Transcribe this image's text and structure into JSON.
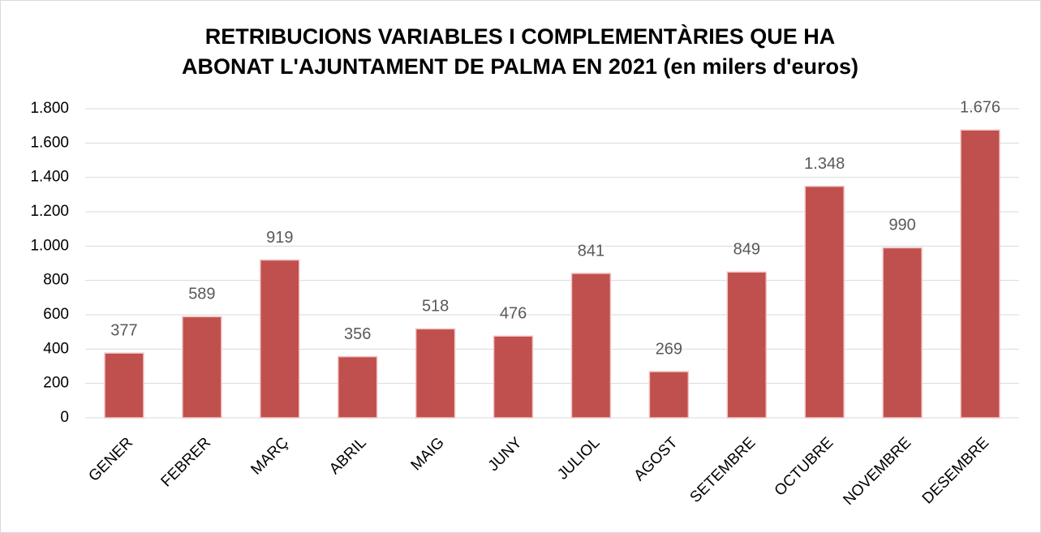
{
  "chart_data": {
    "type": "bar",
    "title": [
      "RETRIBUCIONS VARIABLES I COMPLEMENTÀRIES QUE HA",
      "ABONAT L'AJUNTAMENT DE PALMA EN 2021 (en milers d'euros)"
    ],
    "categories": [
      "GENER",
      "FEBRER",
      "MARÇ",
      "ABRIL",
      "MAIG",
      "JUNY",
      "JULIOL",
      "AGOST",
      "SETEMBRE",
      "OCTUBRE",
      "NOVEMBRE",
      "DESEMBRE"
    ],
    "values": [
      377,
      589,
      919,
      356,
      518,
      476,
      841,
      269,
      849,
      1348,
      990,
      1676
    ],
    "value_labels": [
      "377",
      "589",
      "919",
      "356",
      "518",
      "476",
      "841",
      "269",
      "849",
      "1.348",
      "990",
      "1.676"
    ],
    "color": "#c0504d",
    "ylim": [
      0,
      1800
    ],
    "yticks": [
      0,
      200,
      400,
      600,
      800,
      {
        "value": 1000,
        "label": "1.000"
      },
      {
        "value": 1200,
        "label": "1.200"
      },
      {
        "value": 1400,
        "label": "1.400"
      },
      {
        "value": 1600,
        "label": "1.600"
      },
      {
        "value": 1800,
        "label": "1.800"
      }
    ],
    "grid": true
  }
}
